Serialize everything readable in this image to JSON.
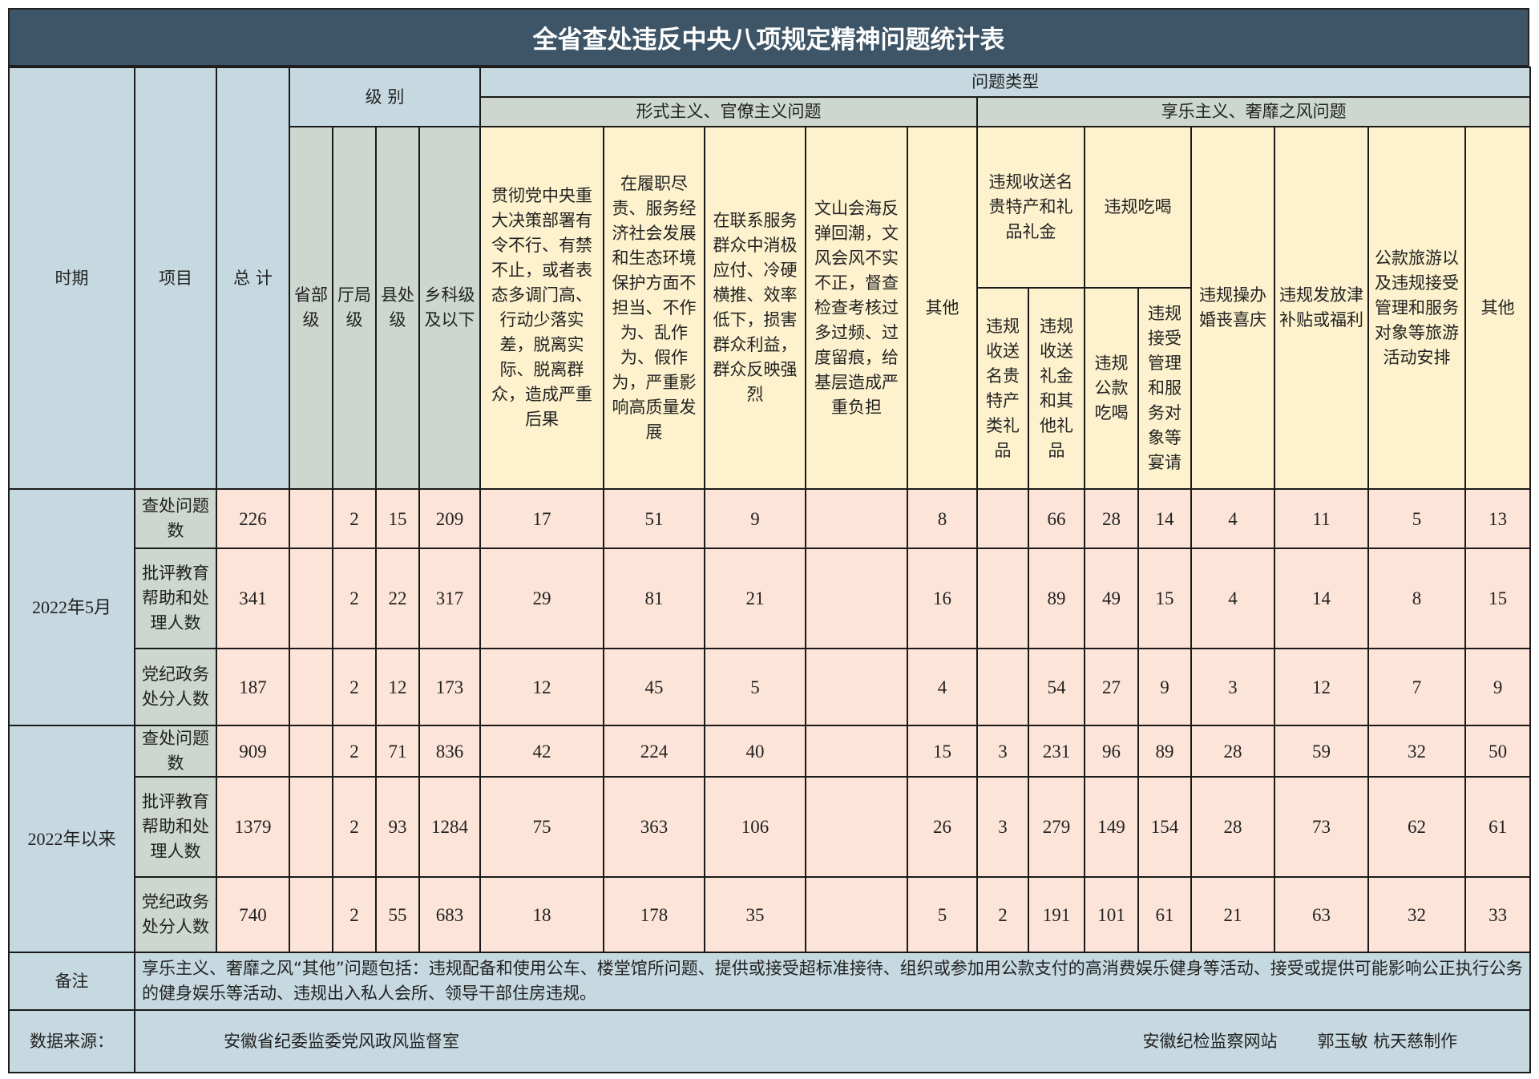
{
  "title": "全省查处违反中央八项规定精神问题统计表",
  "header": {
    "period": "时期",
    "item": "项目",
    "total": "总 计",
    "level": "级 别",
    "problem_type": "问题类型",
    "formalism": "形式主义、官僚主义问题",
    "hedonism": "享乐主义、奢靡之风问题",
    "levels": [
      "省部级",
      "厅局级",
      "县处级",
      "乡科级及以下"
    ],
    "formalism_cols": [
      "贯彻党中央重大决策部署有令不行、有禁不止，或者表态多调门高、行动少落实差，脱离实际、脱离群众，造成严重后果",
      "在履职尽责、服务经济社会发展和生态环境保护方面不担当、不作为、乱作为、假作为，严重影响高质量发展",
      "在联系服务群众中消极应付、冷硬横推、效率低下，损害群众利益，群众反映强烈",
      "文山会海反弹回潮，文风会风不实不正，督查检查考核过多过频、过度留痕，给基层造成严重负担",
      "其他"
    ],
    "gifts": "违规收送名贵特产和礼品礼金",
    "gifts_sub": [
      "违规收送名贵特产类礼品",
      "违规收送礼金和其他礼品"
    ],
    "dining": "违规吃喝",
    "dining_sub": [
      "违规公款吃喝",
      "违规接受管理和服务对象等宴请"
    ],
    "weddings": "违规操办婚丧喜庆",
    "allowances": "违规发放津补贴或福利",
    "travel": "公款旅游以及违规接受管理和服务对象等旅游活动安排",
    "other": "其他"
  },
  "groups": [
    {
      "period": "2022年5月",
      "rows": [
        {
          "item": "查处问题数",
          "values": [
            "226",
            "",
            "2",
            "15",
            "209",
            "17",
            "51",
            "9",
            "",
            "8",
            "",
            "66",
            "28",
            "14",
            "4",
            "11",
            "5",
            "13"
          ]
        },
        {
          "item": "批评教育帮助和处理人数",
          "values": [
            "341",
            "",
            "2",
            "22",
            "317",
            "29",
            "81",
            "21",
            "",
            "16",
            "",
            "89",
            "49",
            "15",
            "4",
            "14",
            "8",
            "15"
          ]
        },
        {
          "item": "党纪政务处分人数",
          "values": [
            "187",
            "",
            "2",
            "12",
            "173",
            "12",
            "45",
            "5",
            "",
            "4",
            "",
            "54",
            "27",
            "9",
            "3",
            "12",
            "7",
            "9"
          ]
        }
      ]
    },
    {
      "period": "2022年以来",
      "rows": [
        {
          "item": "查处问题数",
          "values": [
            "909",
            "",
            "2",
            "71",
            "836",
            "42",
            "224",
            "40",
            "",
            "15",
            "3",
            "231",
            "96",
            "89",
            "28",
            "59",
            "32",
            "50"
          ]
        },
        {
          "item": "批评教育帮助和处理人数",
          "values": [
            "1379",
            "",
            "2",
            "93",
            "1284",
            "75",
            "363",
            "106",
            "",
            "26",
            "3",
            "279",
            "149",
            "154",
            "28",
            "73",
            "62",
            "61"
          ]
        },
        {
          "item": "党纪政务处分人数",
          "values": [
            "740",
            "",
            "2",
            "55",
            "683",
            "18",
            "178",
            "35",
            "",
            "5",
            "2",
            "191",
            "101",
            "61",
            "21",
            "63",
            "32",
            "33"
          ]
        }
      ]
    }
  ],
  "footer": {
    "note_label": "备注",
    "note": "享乐主义、奢靡之风“其他”问题包括：违规配备和使用公车、楼堂馆所问题、提供或接受超标准接待、组织或参加用公款支付的高消费娱乐健身等活动、接受或提供可能影响公正执行公务的健身娱乐等活动、违规出入私人会所、领导干部住房违规。",
    "source_label": "数据来源：",
    "source": "安徽省纪委监委党风政风监督室",
    "site": "安徽纪检监察网站",
    "credit": "郭玉敏  杭天慈制作"
  },
  "colors": {
    "title_bg": "#3d5567",
    "header_blue": "#c6d9e0",
    "header_grey": "#cdd6cf",
    "header_yellow": "#fdf2cd",
    "data_pink": "#fde4d8"
  }
}
